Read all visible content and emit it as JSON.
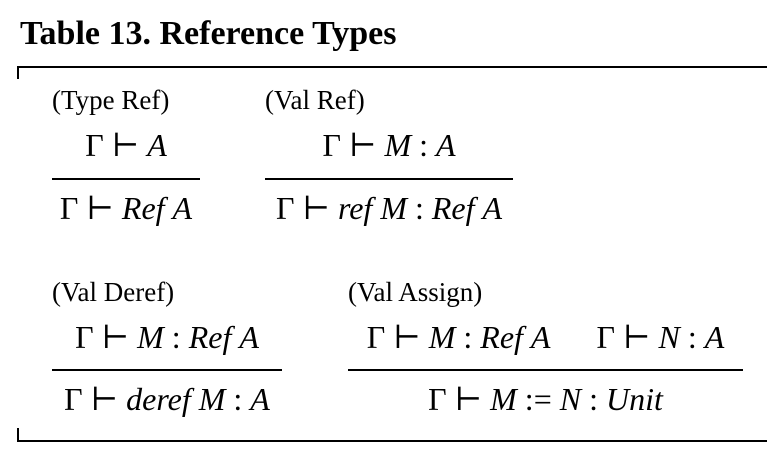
{
  "title": "Table 13. Reference Types",
  "rules": [
    {
      "name": "(Type Ref)",
      "premises": [
        {
          "text": "Γ ⊢ A"
        }
      ],
      "conclusion": "Γ ⊢ Ref A"
    },
    {
      "name": "(Val Ref)",
      "premises": [
        {
          "text": "Γ ⊢ M : A"
        }
      ],
      "conclusion": "Γ ⊢ ref M : Ref A"
    },
    {
      "name": "(Val Deref)",
      "premises": [
        {
          "text": "Γ ⊢ M : Ref A"
        }
      ],
      "conclusion": "Γ ⊢ deref M : A"
    },
    {
      "name": "(Val Assign)",
      "premises": [
        {
          "text": "Γ ⊢ M : Ref A"
        },
        {
          "text": "Γ ⊢ N : A"
        }
      ],
      "conclusion": "Γ ⊢ M := N : Unit"
    }
  ]
}
